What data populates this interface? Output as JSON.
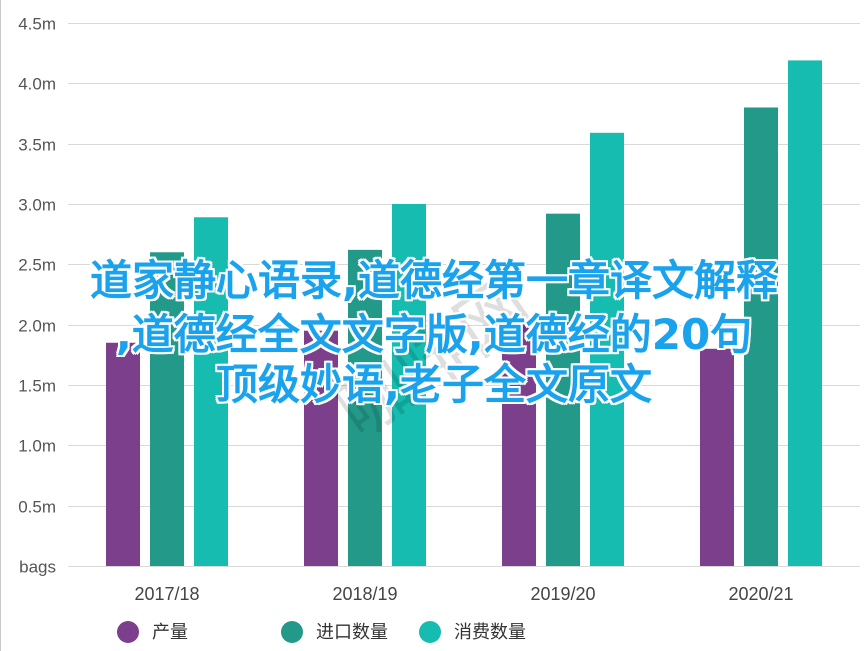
{
  "chart_data": {
    "type": "bar",
    "categories": [
      "2017/18",
      "2018/19",
      "2019/20",
      "2020/21"
    ],
    "series": [
      {
        "name": "产量",
        "color": "#7b3f8c",
        "values": [
          1.85,
          1.95,
          2.05,
          1.8
        ]
      },
      {
        "name": "进口数量",
        "color": "#23998a",
        "values": [
          2.6,
          2.62,
          2.92,
          3.8
        ]
      },
      {
        "name": "消费数量",
        "color": "#15bcaf",
        "values": [
          2.89,
          3.0,
          3.59,
          4.19
        ]
      }
    ],
    "ylim": [
      0,
      4.5
    ],
    "yticks": [
      {
        "value": 0,
        "label": "bags"
      },
      {
        "value": 0.5,
        "label": "0.5m"
      },
      {
        "value": 1.0,
        "label": "1.0m"
      },
      {
        "value": 1.5,
        "label": "1.5m"
      },
      {
        "value": 2.0,
        "label": "2.0m"
      },
      {
        "value": 2.5,
        "label": "2.5m"
      },
      {
        "value": 3.0,
        "label": "3.0m"
      },
      {
        "value": 3.5,
        "label": "3.5m"
      },
      {
        "value": 4.0,
        "label": "4.0m"
      },
      {
        "value": 4.5,
        "label": "4.5m"
      }
    ],
    "grid": true,
    "legend_position": "bottom"
  },
  "overlay": {
    "line1": "道家静心语录,道德经第一章译文解释",
    "line2": ",道德经全文文字版,道德经的20句",
    "line3": "顶级妙语,老子全文原文",
    "color": "#1aa3ec"
  },
  "watermark": "咖啡网"
}
